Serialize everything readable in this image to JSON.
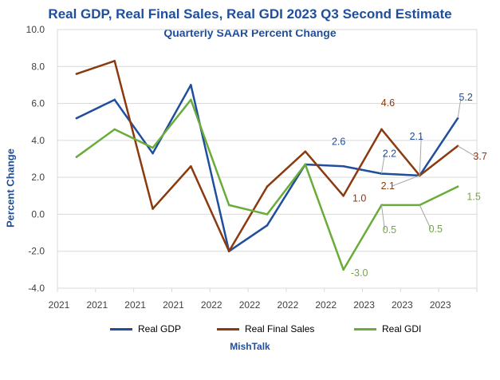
{
  "colors": {
    "title": "#1f4e9c",
    "axis_text": "#404040",
    "grid": "#d9d9d9",
    "gdp": "#1f4e9c",
    "final_sales": "#8b3a0f",
    "gdi": "#6aac3a"
  },
  "chart_data": {
    "type": "line",
    "title": "Real GDP, Real Final Sales, Real GDI 2023 Q3 Second Estimate",
    "subtitle": "Quarterly SAAR Percent Change",
    "ylabel": "Percent Change",
    "xlabel": "",
    "ylim": [
      -4,
      10
    ],
    "yticks": [
      "10.0",
      "8.0",
      "6.0",
      "4.0",
      "2.0",
      "0.0",
      "-2.0",
      "-4.0"
    ],
    "categories": [
      "2021",
      "2021",
      "2021",
      "2021",
      "2022",
      "2022",
      "2022",
      "2022",
      "2023",
      "2023",
      "2023"
    ],
    "grid": true,
    "legend_position": "bottom",
    "series": [
      {
        "name": "Real GDP",
        "key": "gdp",
        "values": [
          5.2,
          6.2,
          3.3,
          7.0,
          -2.0,
          -0.6,
          2.7,
          2.6,
          2.2,
          2.1,
          5.2
        ]
      },
      {
        "name": "Real Final Sales",
        "key": "final_sales",
        "values": [
          7.6,
          8.3,
          0.3,
          2.6,
          -2.0,
          1.5,
          3.4,
          1.0,
          4.6,
          2.1,
          3.7
        ]
      },
      {
        "name": "Real GDI",
        "key": "gdi",
        "values": [
          3.1,
          4.6,
          3.6,
          6.2,
          0.5,
          0.0,
          2.7,
          -3.0,
          0.5,
          0.5,
          1.5
        ]
      }
    ],
    "data_labels": [
      {
        "text": "2.6",
        "series": "gdp",
        "index": 7
      },
      {
        "text": "2.2",
        "series": "gdp",
        "index": 8
      },
      {
        "text": "2.1",
        "series": "gdp",
        "index": 9
      },
      {
        "text": "5.2",
        "series": "gdp",
        "index": 10
      },
      {
        "text": "1.0",
        "series": "final_sales",
        "index": 7
      },
      {
        "text": "4.6",
        "series": "final_sales",
        "index": 8
      },
      {
        "text": "2.1",
        "series": "final_sales",
        "index": 9
      },
      {
        "text": "3.7",
        "series": "final_sales",
        "index": 10
      },
      {
        "text": "-3.0",
        "series": "gdi",
        "index": 7
      },
      {
        "text": "0.5",
        "series": "gdi",
        "index": 8
      },
      {
        "text": "0.5",
        "series": "gdi",
        "index": 9
      },
      {
        "text": "1.5",
        "series": "gdi",
        "index": 10
      }
    ]
  },
  "source": "MishTalk"
}
